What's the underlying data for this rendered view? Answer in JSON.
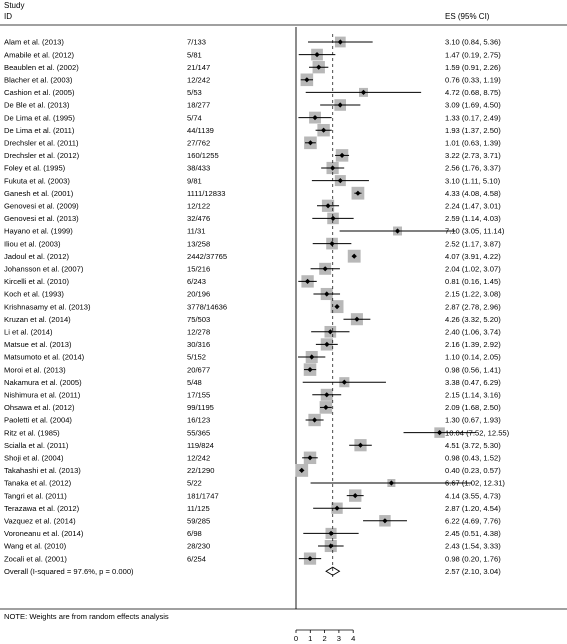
{
  "header": {
    "line1": "Study",
    "line2": "ID",
    "es_col": "ES (95% CI)"
  },
  "note": "NOTE: Weights are from random effects analysis",
  "chart_data": {
    "type": "forest",
    "xlim": [
      0,
      12.55
    ],
    "null_line": 0,
    "x_ticks": [
      "0",
      "1",
      "2",
      "3",
      "4"
    ],
    "studies": [
      {
        "id": "Alam et al. (2013)",
        "n": "7/133",
        "es_text": "3.10 (0.84, 5.36)",
        "es": 3.1,
        "lo": 0.84,
        "hi": 5.36
      },
      {
        "id": "Amabile et al. (2012)",
        "n": "5/81",
        "es_text": "1.47 (0.19, 2.75)",
        "es": 1.47,
        "lo": 0.19,
        "hi": 2.75
      },
      {
        "id": "Beaublen et al. (2002)",
        "n": "21/147",
        "es_text": "1.59 (0.91, 2.26)",
        "es": 1.59,
        "lo": 0.91,
        "hi": 2.26
      },
      {
        "id": "Blacher et al. (2003)",
        "n": "12/242",
        "es_text": "0.76 (0.33, 1.19)",
        "es": 0.76,
        "lo": 0.33,
        "hi": 1.19
      },
      {
        "id": "Cashion et al. (2005)",
        "n": "5/53",
        "es_text": "4.72 (0.68, 8.75)",
        "es": 4.72,
        "lo": 0.68,
        "hi": 8.75
      },
      {
        "id": "De Ble et al. (2013)",
        "n": "18/277",
        "es_text": "3.09 (1.69, 4.50)",
        "es": 3.09,
        "lo": 1.69,
        "hi": 4.5
      },
      {
        "id": "De Lima et al. (1995)",
        "n": "5/74",
        "es_text": "1.33 (0.17, 2.49)",
        "es": 1.33,
        "lo": 0.17,
        "hi": 2.49
      },
      {
        "id": "De Lima et al. (2011)",
        "n": "44/1139",
        "es_text": "1.93 (1.37, 2.50)",
        "es": 1.93,
        "lo": 1.37,
        "hi": 2.5
      },
      {
        "id": "Drechsler et al. (2011)",
        "n": "27/762",
        "es_text": "1.01 (0.63, 1.39)",
        "es": 1.01,
        "lo": 0.63,
        "hi": 1.39
      },
      {
        "id": "Drechsler et al. (2012)",
        "n": "160/1255",
        "es_text": "3.22 (2.73, 3.71)",
        "es": 3.22,
        "lo": 2.73,
        "hi": 3.71
      },
      {
        "id": "Foley et al. (1995)",
        "n": "38/433",
        "es_text": "2.56 (1.76, 3.37)",
        "es": 2.56,
        "lo": 1.76,
        "hi": 3.37
      },
      {
        "id": "Fukuta et al. (2003)",
        "n": "9/81",
        "es_text": "3.10 (1.11, 5.10)",
        "es": 3.1,
        "lo": 1.11,
        "hi": 5.1
      },
      {
        "id": "Ganesh et al. (2001)",
        "n": "1111/12833",
        "es_text": "4.33 (4.08, 4.58)",
        "es": 4.33,
        "lo": 4.08,
        "hi": 4.58
      },
      {
        "id": "Genovesi et al. (2009)",
        "n": "12/122",
        "es_text": "2.24 (1.47, 3.01)",
        "es": 2.24,
        "lo": 1.47,
        "hi": 3.01
      },
      {
        "id": "Genovesi et al. (2013)",
        "n": "32/476",
        "es_text": "2.59 (1.14, 4.03)",
        "es": 2.59,
        "lo": 1.14,
        "hi": 4.03
      },
      {
        "id": "Hayano et al. (1999)",
        "n": "11/31",
        "es_text": "7.10 (3.05, 11.14)",
        "es": 7.1,
        "lo": 3.05,
        "hi": 11.14
      },
      {
        "id": "Iliou et al. (2003)",
        "n": "13/258",
        "es_text": "2.52 (1.17, 3.87)",
        "es": 2.52,
        "lo": 1.17,
        "hi": 3.87
      },
      {
        "id": "Jadoul et al. (2012)",
        "n": "2442/37765",
        "es_text": "4.07 (3.91, 4.22)",
        "es": 4.07,
        "lo": 3.91,
        "hi": 4.22
      },
      {
        "id": "Johansson et al. (2007)",
        "n": "15/216",
        "es_text": "2.04 (1.02, 3.07)",
        "es": 2.04,
        "lo": 1.02,
        "hi": 3.07
      },
      {
        "id": "Kircelli et al. (2010)",
        "n": "6/243",
        "es_text": "0.81 (0.16, 1.45)",
        "es": 0.81,
        "lo": 0.16,
        "hi": 1.45
      },
      {
        "id": "Koch et al. (1993)",
        "n": "20/196",
        "es_text": "2.15 (1.22, 3.08)",
        "es": 2.15,
        "lo": 1.22,
        "hi": 3.08
      },
      {
        "id": "Krishnasamy et al. (2013)",
        "n": "3778/14636",
        "es_text": "2.87 (2.78, 2.96)",
        "es": 2.87,
        "lo": 2.78,
        "hi": 2.96
      },
      {
        "id": "Kruzan et al. (2014)",
        "n": "75/503",
        "es_text": "4.26 (3.32, 5.20)",
        "es": 4.26,
        "lo": 3.32,
        "hi": 5.2
      },
      {
        "id": "Li et al. (2014)",
        "n": "12/278",
        "es_text": "2.40 (1.06, 3.74)",
        "es": 2.4,
        "lo": 1.06,
        "hi": 3.74
      },
      {
        "id": "Matsue et al. (2013)",
        "n": "30/316",
        "es_text": "2.16 (1.39, 2.92)",
        "es": 2.16,
        "lo": 1.39,
        "hi": 2.92
      },
      {
        "id": "Matsumoto et al. (2014)",
        "n": "5/152",
        "es_text": "1.10 (0.14, 2.05)",
        "es": 1.1,
        "lo": 0.14,
        "hi": 2.05
      },
      {
        "id": "Moroi et al. (2013)",
        "n": "20/677",
        "es_text": "0.98 (0.56, 1.41)",
        "es": 0.98,
        "lo": 0.56,
        "hi": 1.41
      },
      {
        "id": "Nakamura et al. (2005)",
        "n": "5/48",
        "es_text": "3.38 (0.47, 6.29)",
        "es": 3.38,
        "lo": 0.47,
        "hi": 6.29
      },
      {
        "id": "Nishimura et al. (2011)",
        "n": "17/155",
        "es_text": "2.15 (1.14, 3.16)",
        "es": 2.15,
        "lo": 1.14,
        "hi": 3.16
      },
      {
        "id": "Ohsawa et al. (2012)",
        "n": "99/1195",
        "es_text": "2.09 (1.68, 2.50)",
        "es": 2.09,
        "lo": 1.68,
        "hi": 2.5
      },
      {
        "id": "Paoletti et al. (2004)",
        "n": "16/123",
        "es_text": "1.30 (0.67, 1.93)",
        "es": 1.3,
        "lo": 0.67,
        "hi": 1.93
      },
      {
        "id": "Ritz et al. (1985)",
        "n": "55/365",
        "es_text": "10.04 (7.52, 12.55)",
        "es": 10.04,
        "lo": 7.52,
        "hi": 12.55
      },
      {
        "id": "Scialla et al. (2011)",
        "n": "119/824",
        "es_text": "4.51 (3.72, 5.30)",
        "es": 4.51,
        "lo": 3.72,
        "hi": 5.3
      },
      {
        "id": "Shoji et al. (2004)",
        "n": "12/242",
        "es_text": "0.98 (0.43, 1.52)",
        "es": 0.98,
        "lo": 0.43,
        "hi": 1.52
      },
      {
        "id": "Takahashi et al. (2013)",
        "n": "22/1290",
        "es_text": "0.40 (0.23, 0.57)",
        "es": 0.4,
        "lo": 0.23,
        "hi": 0.57
      },
      {
        "id": "Tanaka et al. (2012)",
        "n": "5/22",
        "es_text": "6.67 (1.02, 12.31)",
        "es": 6.67,
        "lo": 1.02,
        "hi": 12.31
      },
      {
        "id": "Tangri et al. (2011)",
        "n": "181/1747",
        "es_text": "4.14 (3.55, 4.73)",
        "es": 4.14,
        "lo": 3.55,
        "hi": 4.73
      },
      {
        "id": "Terazawa et al. (2012)",
        "n": "11/125",
        "es_text": "2.87 (1.20, 4.54)",
        "es": 2.87,
        "lo": 1.2,
        "hi": 4.54
      },
      {
        "id": "Vazquez et al. (2014)",
        "n": "59/285",
        "es_text": "6.22 (4.69, 7.76)",
        "es": 6.22,
        "lo": 4.69,
        "hi": 7.76
      },
      {
        "id": "Voroneanu et al. (2014)",
        "n": "6/98",
        "es_text": "2.45 (0.51, 4.38)",
        "es": 2.45,
        "lo": 0.51,
        "hi": 4.38
      },
      {
        "id": "Wang et al. (2010)",
        "n": "28/230",
        "es_text": "2.43 (1.54, 3.33)",
        "es": 2.43,
        "lo": 1.54,
        "hi": 3.33
      },
      {
        "id": "Zocali et al. (2001)",
        "n": "6/254",
        "es_text": "0.98 (0.20, 1.76)",
        "es": 0.98,
        "lo": 0.2,
        "hi": 1.76
      }
    ],
    "overall": {
      "label": "Overall  (I-squared = 97.6%, p = 0.000)",
      "es_text": "2.57 (2.10, 3.04)",
      "es": 2.57,
      "lo": 2.1,
      "hi": 3.04
    },
    "colors": {
      "box": "#b8b8b8",
      "line": "#000000",
      "marker": "#000000"
    }
  }
}
